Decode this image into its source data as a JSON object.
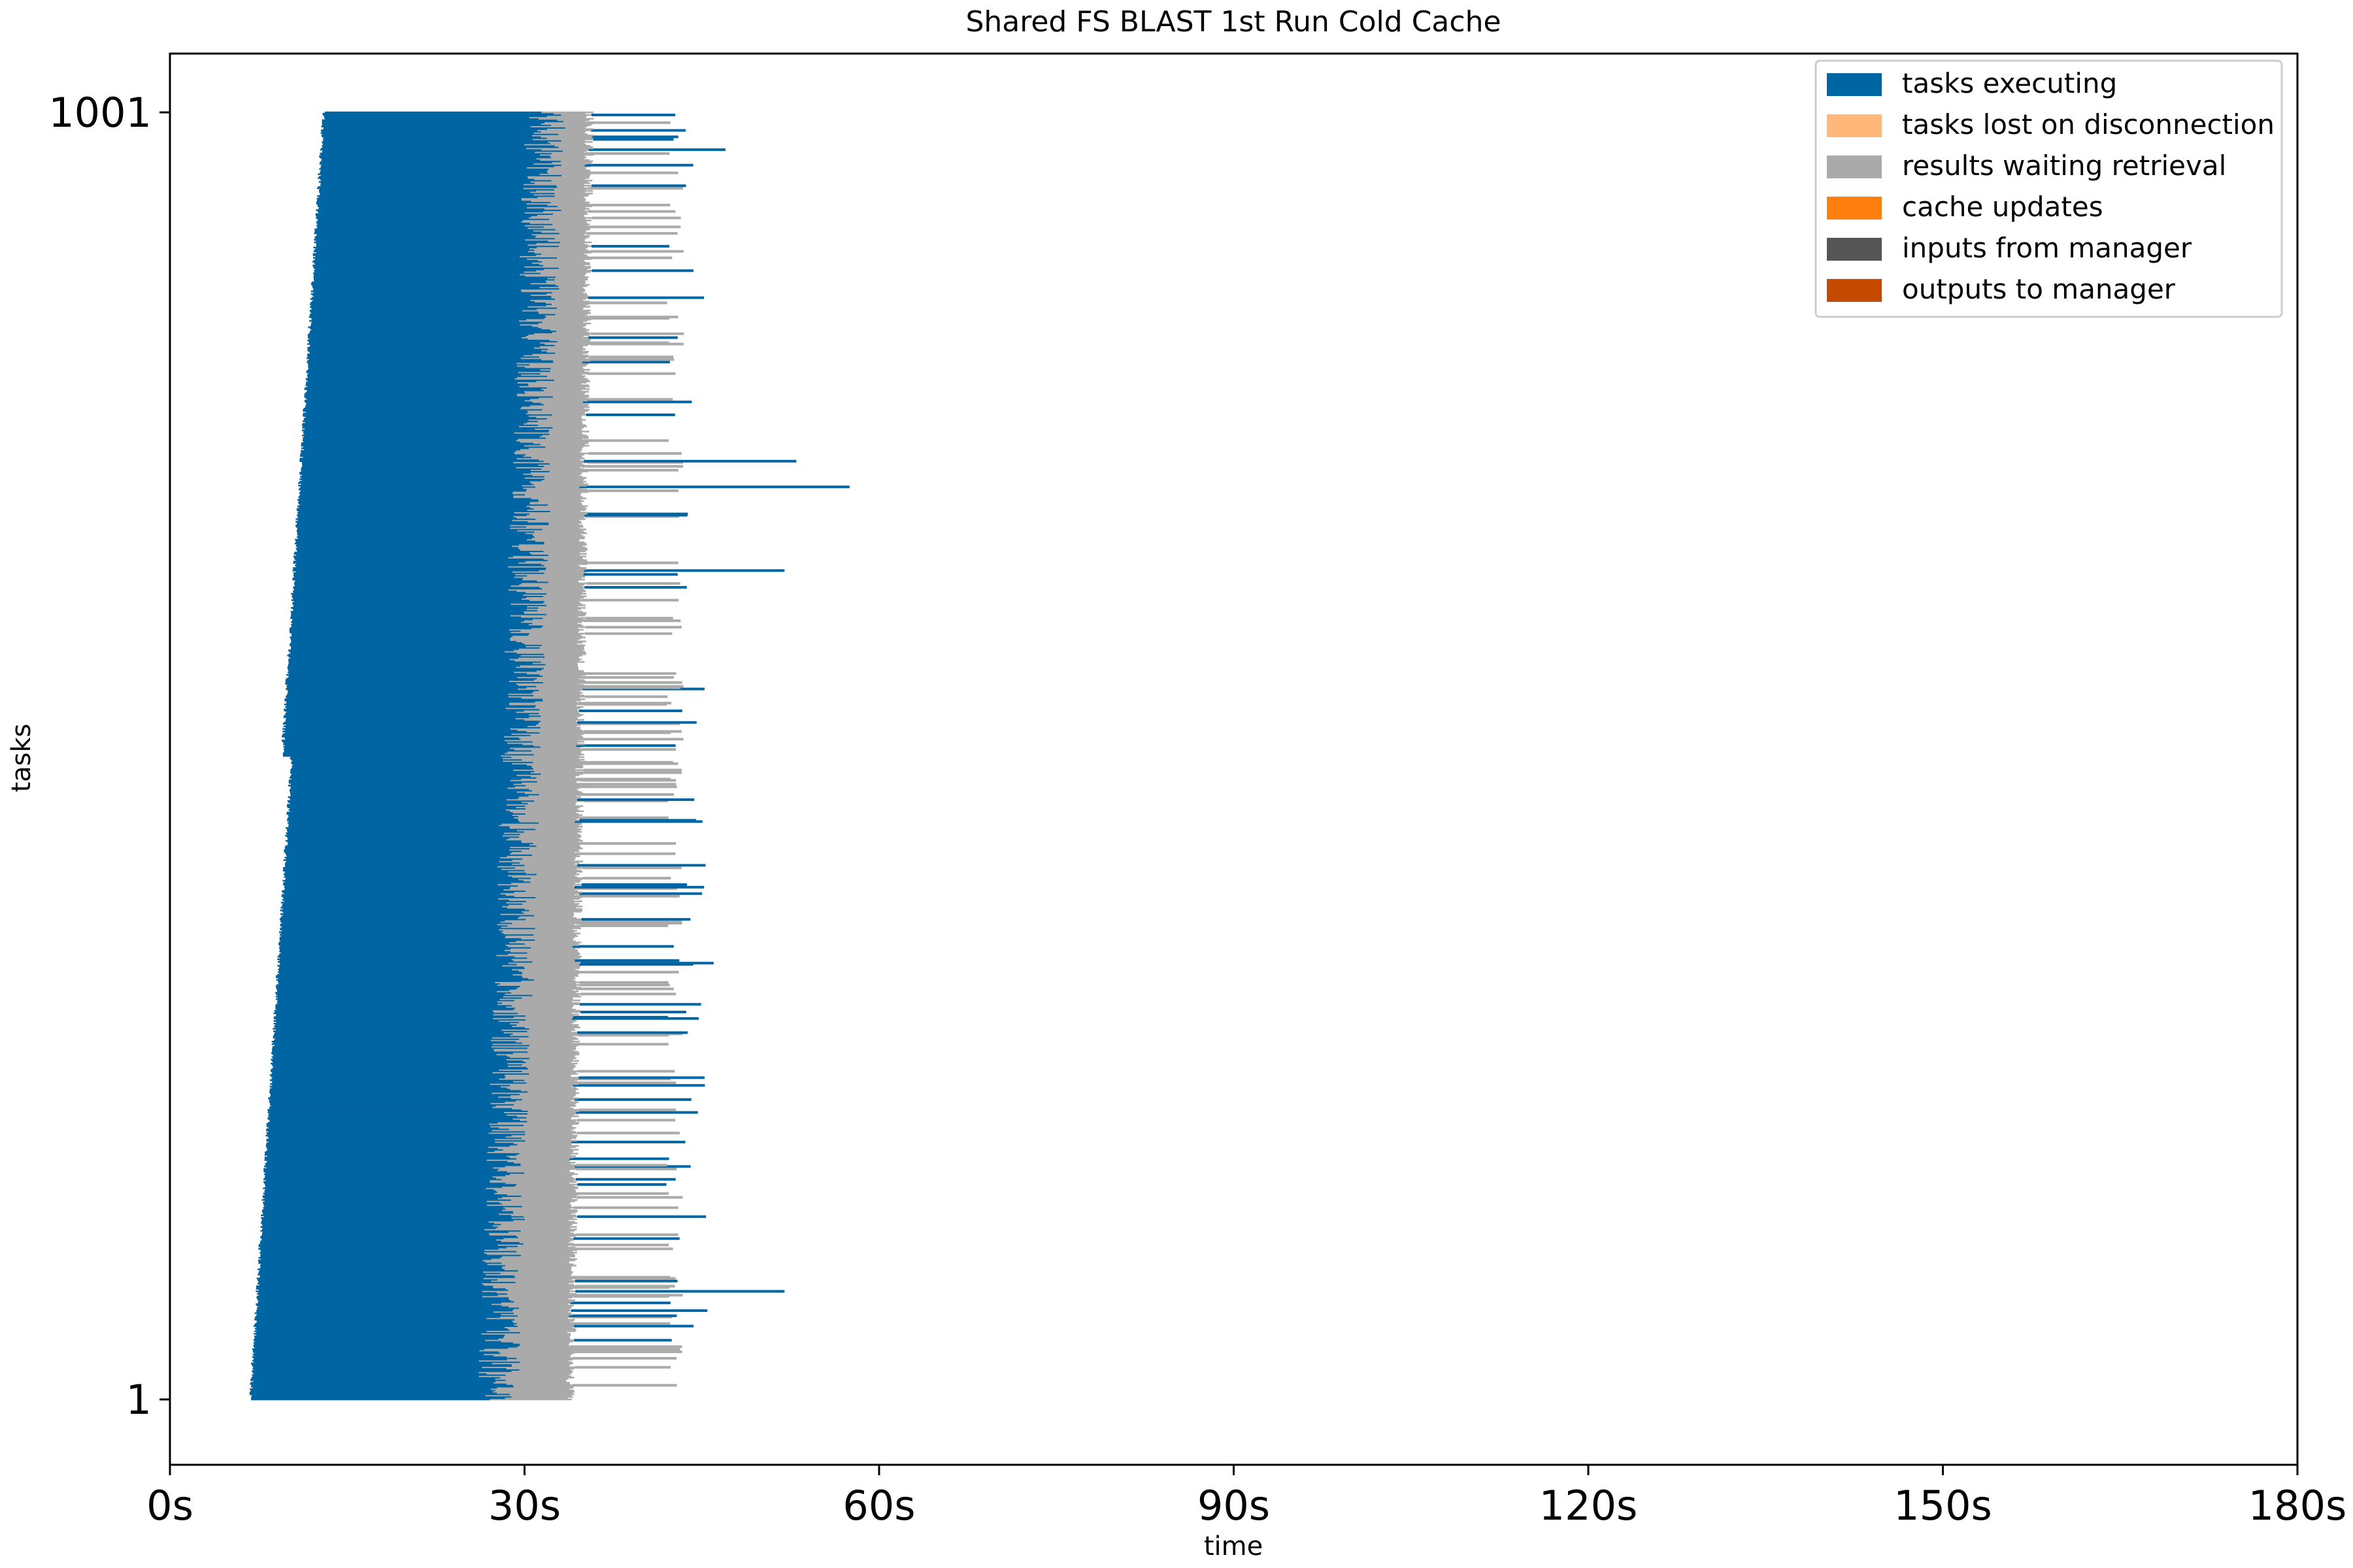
{
  "chart_data": {
    "type": "bar",
    "title": "Shared FS BLAST 1st Run Cold Cache",
    "xlabel": "time",
    "ylabel": "tasks",
    "xlim": [
      0,
      180
    ],
    "ylim": [
      1,
      1001
    ],
    "x_ticks": [
      0,
      30,
      60,
      90,
      120,
      150,
      180
    ],
    "x_tick_labels": [
      "0s",
      "30s",
      "60s",
      "90s",
      "120s",
      "150s",
      "180s"
    ],
    "y_ticks": [
      1,
      1001
    ],
    "y_tick_labels": [
      "1",
      "1001"
    ],
    "legend_position": "top-right",
    "series": [
      {
        "name": "tasks executing",
        "color": "#0065a3",
        "start_range": [
          6.8,
          13.0
        ],
        "end_range": [
          25.5,
          33.0
        ]
      },
      {
        "name": "tasks lost on disconnection",
        "color": "#ffb87a"
      },
      {
        "name": "results waiting retrieval",
        "color": "#aaaaaa",
        "end_range": [
          33.5,
          36.0
        ]
      },
      {
        "name": "cache updates",
        "color": "#ff7f0e"
      },
      {
        "name": "inputs from manager",
        "color": "#555555"
      },
      {
        "name": "outputs to manager",
        "color": "#c54a00"
      }
    ],
    "notable_outliers": [
      {
        "task": 972,
        "end": 47
      },
      {
        "task": 730,
        "end": 53
      },
      {
        "task": 710,
        "end": 57.5
      },
      {
        "task": 645,
        "end": 52
      },
      {
        "task": 340,
        "end": 46
      },
      {
        "task": 85,
        "end": 52
      }
    ]
  }
}
